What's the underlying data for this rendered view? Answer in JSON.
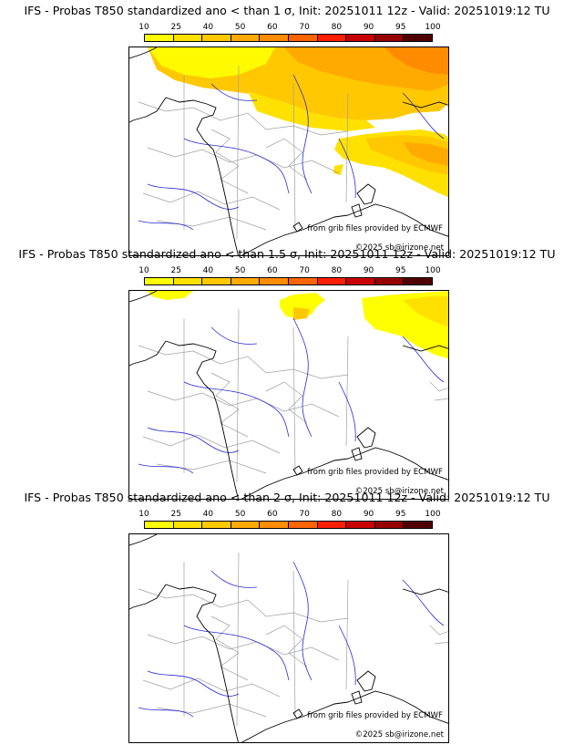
{
  "colorbar": {
    "labels": [
      "10",
      "25",
      "40",
      "50",
      "60",
      "70",
      "80",
      "90",
      "95",
      "100"
    ],
    "colors": [
      "#ffff00",
      "#ffe100",
      "#ffc800",
      "#ffaa00",
      "#ff8c00",
      "#ff6400",
      "#ff1e00",
      "#c80000",
      "#960000",
      "#500000"
    ]
  },
  "panels": [
    {
      "title": "IFS - Probas T850  standardized ano < than 1 σ, Init: 20251011 12z - Valid: 20251019:12 TU",
      "source": "from grib files provided by ECMWF",
      "copyright": "©2025 sb@irizone.net"
    },
    {
      "title": "IFS - Probas T850  standardized ano < than 1.5 σ, Init: 20251011 12z - Valid: 20251019:12 TU",
      "source": "from grib files provided by ECMWF",
      "copyright": "©2025 sb@irizone.net"
    },
    {
      "title": "IFS - Probas T850  standardized ano < than 2 σ, Init: 20251011 12z - Valid: 20251019:12 TU",
      "source": "from grib files provided by ECMWF",
      "copyright": "©2025 sb@irizone.net"
    }
  ],
  "colors": {
    "coast": "#000000",
    "borders": "#a0a0a0",
    "rivers": "#2a2ad8"
  }
}
